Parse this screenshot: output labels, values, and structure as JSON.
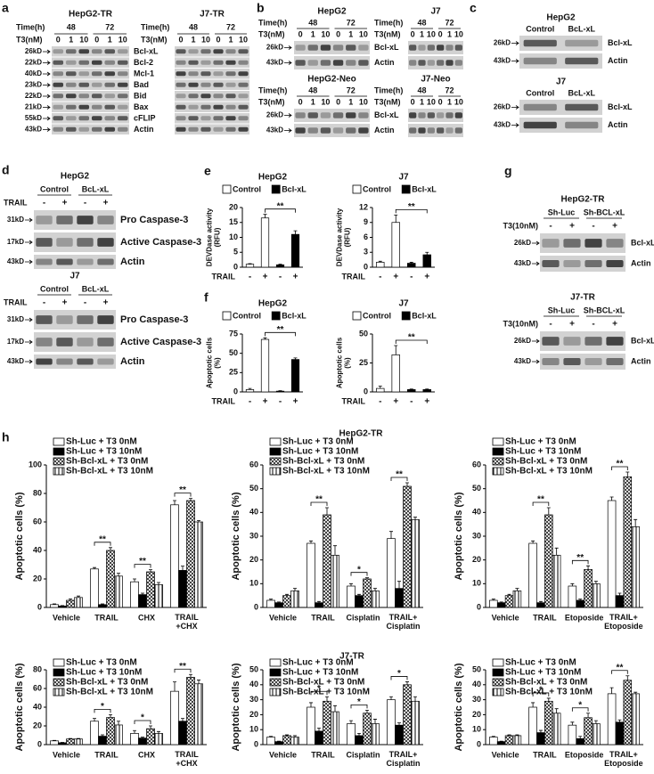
{
  "chart_data": [
    {
      "type": "bar",
      "title": "HepG2",
      "y_label": "DEVDase activity\n(RFU)",
      "x_label": "TRAIL",
      "categories": [
        "-",
        "+",
        "-",
        "+"
      ],
      "series": [
        {
          "name": "Control",
          "color": "#ffffff",
          "values": [
            1,
            16.5,
            null,
            null
          ],
          "errors": [
            0.2,
            1.2,
            null,
            null
          ]
        },
        {
          "name": "Bcl-xL",
          "color": "#000000",
          "values": [
            null,
            null,
            0.8,
            11
          ],
          "errors": [
            null,
            null,
            0.2,
            1.2
          ]
        }
      ],
      "ylim": [
        0,
        20
      ],
      "yticks": [
        0,
        5,
        10,
        15,
        20
      ],
      "significance": "**"
    },
    {
      "type": "bar",
      "title": "J7",
      "y_label": "DEVDase activity\n(RFU)",
      "x_label": "TRAIL",
      "categories": [
        "-",
        "+",
        "-",
        "+"
      ],
      "series": [
        {
          "name": "Control",
          "color": "#ffffff",
          "values": [
            1,
            9,
            null,
            null
          ],
          "errors": [
            0.2,
            1.5,
            null,
            null
          ]
        },
        {
          "name": "Bcl-xL",
          "color": "#000000",
          "values": [
            null,
            null,
            0.8,
            2.5
          ],
          "errors": [
            null,
            null,
            0.2,
            0.5
          ]
        }
      ],
      "ylim": [
        0,
        12
      ],
      "yticks": [
        0,
        3,
        6,
        9,
        12
      ],
      "significance": "**"
    },
    {
      "type": "bar",
      "title": "HepG2",
      "y_label": "Apoptotic cells\n(%)",
      "x_label": "TRAIL",
      "categories": [
        "-",
        "+",
        "-",
        "+"
      ],
      "series": [
        {
          "name": "Control",
          "color": "#ffffff",
          "values": [
            3,
            68,
            null,
            null
          ],
          "errors": [
            1.5,
            2,
            null,
            null
          ]
        },
        {
          "name": "Bcl-xL",
          "color": "#000000",
          "values": [
            null,
            null,
            1,
            42
          ],
          "errors": [
            null,
            null,
            0.5,
            2
          ]
        }
      ],
      "ylim": [
        0,
        75
      ],
      "yticks": [
        0,
        25,
        50,
        75
      ],
      "significance": "**"
    },
    {
      "type": "bar",
      "title": "J7",
      "y_label": "Apoptotic cells\n(%)",
      "x_label": "TRAIL",
      "categories": [
        "-",
        "+",
        "-",
        "+"
      ],
      "series": [
        {
          "name": "Control",
          "color": "#ffffff",
          "values": [
            3,
            32,
            null,
            null
          ],
          "errors": [
            2,
            8,
            null,
            null
          ]
        },
        {
          "name": "Bcl-xL",
          "color": "#000000",
          "values": [
            null,
            null,
            2,
            2
          ],
          "errors": [
            null,
            null,
            0.5,
            0.5
          ]
        }
      ],
      "ylim": [
        0,
        50
      ],
      "yticks": [
        0,
        25,
        50
      ],
      "significance": "**"
    },
    {
      "type": "bar",
      "y_label": "Apoptotic cells (%)",
      "categories": [
        "Vehicle",
        "TRAIL",
        "CHX",
        "TRAIL\n+CHX"
      ],
      "series": [
        {
          "name": "Sh-Luc + T3 0nM",
          "color": "#ffffff",
          "values": [
            2,
            27,
            18,
            72
          ],
          "errors": [
            0.5,
            1,
            2,
            3
          ]
        },
        {
          "name": "Sh-Luc + T3 10nM",
          "color": "#000000",
          "values": [
            1,
            2,
            9,
            26
          ],
          "errors": [
            0.3,
            0.5,
            1,
            3
          ]
        },
        {
          "name": "Sh-Bcl-xL + T3 0nM",
          "color": "#000000",
          "pattern": "checker",
          "values": [
            5,
            40,
            25,
            75
          ],
          "errors": [
            1,
            2,
            1.5,
            1.5
          ]
        },
        {
          "name": "Sh-Bcl-xL + T3 10nM",
          "color": "#000000",
          "pattern": "stripes",
          "values": [
            7,
            22,
            16,
            60
          ],
          "errors": [
            1,
            2,
            1.5,
            1
          ]
        }
      ],
      "ylim": [
        0,
        100
      ],
      "yticks": [
        0,
        20,
        40,
        60,
        80,
        100
      ],
      "significance": [
        null,
        "**",
        "**",
        "**"
      ]
    },
    {
      "type": "bar",
      "y_label": "Apoptotic cells (%)",
      "categories": [
        "Vehicle",
        "TRAIL",
        "Cisplatin",
        "TRAIL+\nCisplatin"
      ],
      "series": [
        {
          "name": "Sh-Luc + T3 0nM",
          "color": "#ffffff",
          "values": [
            3,
            27,
            9,
            29
          ],
          "errors": [
            0.5,
            1,
            1,
            3
          ]
        },
        {
          "name": "Sh-Luc + T3 10nM",
          "color": "#000000",
          "values": [
            2,
            2,
            5,
            8
          ],
          "errors": [
            0.3,
            0.5,
            0.5,
            3
          ]
        },
        {
          "name": "Sh-Bcl-xL + T3 0nM",
          "color": "#000000",
          "pattern": "checker",
          "values": [
            5,
            39,
            12,
            51
          ],
          "errors": [
            0.5,
            3,
            0.5,
            1.5
          ]
        },
        {
          "name": "Sh-Bcl-xL + T3 10nM",
          "color": "#000000",
          "pattern": "stripes",
          "values": [
            7,
            22,
            7,
            37
          ],
          "errors": [
            1,
            4,
            1,
            1
          ]
        }
      ],
      "ylim": [
        0,
        60
      ],
      "yticks": [
        0,
        10,
        20,
        30,
        40,
        50,
        60
      ],
      "significance": [
        null,
        "**",
        "*",
        "**"
      ]
    },
    {
      "type": "bar",
      "y_label": "Apoptotic cells (%)",
      "categories": [
        "Vehicle",
        "TRAIL",
        "Etoposide",
        "TRAIL+\nEtoposide"
      ],
      "series": [
        {
          "name": "Sh-Luc + T3 0nM",
          "color": "#ffffff",
          "values": [
            3,
            27,
            9,
            45
          ],
          "errors": [
            0.5,
            1,
            1,
            1.5
          ]
        },
        {
          "name": "Sh-Luc + T3 10nM",
          "color": "#000000",
          "values": [
            2,
            2,
            3,
            5
          ],
          "errors": [
            0.3,
            0.5,
            0.5,
            1
          ]
        },
        {
          "name": "Sh-Bcl-xL + T3 0nM",
          "color": "#000000",
          "pattern": "checker",
          "values": [
            5,
            39,
            16,
            55
          ],
          "errors": [
            0.5,
            3,
            1.5,
            2
          ]
        },
        {
          "name": "Sh-Bcl-xL + T3 10nM",
          "color": "#000000",
          "pattern": "stripes",
          "values": [
            7,
            22,
            10,
            34
          ],
          "errors": [
            1,
            3,
            1,
            3
          ]
        }
      ],
      "ylim": [
        0,
        60
      ],
      "yticks": [
        0,
        10,
        20,
        30,
        40,
        50,
        60
      ],
      "significance": [
        null,
        "**",
        "**",
        "**"
      ]
    },
    {
      "type": "bar",
      "y_label": "Apoptotic cells (%)",
      "categories": [
        "Vehicle",
        "TRAIL",
        "CHX",
        "TRAIL\n+CHX"
      ],
      "series": [
        {
          "name": "Sh-Luc + T3 0nM",
          "color": "#ffffff",
          "values": [
            4,
            25,
            12,
            57
          ],
          "errors": [
            0.5,
            3,
            3,
            10
          ]
        },
        {
          "name": "Sh-Luc + T3 10nM",
          "color": "#000000",
          "values": [
            2,
            9,
            7,
            25
          ],
          "errors": [
            0.3,
            1.5,
            1,
            3
          ]
        },
        {
          "name": "Sh-Bcl-xL + T3 0nM",
          "color": "#000000",
          "pattern": "checker",
          "values": [
            6,
            29,
            17,
            72
          ],
          "errors": [
            0.5,
            3,
            3,
            3
          ]
        },
        {
          "name": "Sh-Bcl-xL + T3 10nM",
          "color": "#000000",
          "pattern": "stripes",
          "values": [
            6,
            21,
            12,
            65
          ],
          "errors": [
            0.5,
            4,
            2,
            4
          ]
        }
      ],
      "ylim": [
        0,
        80
      ],
      "yticks": [
        0,
        20,
        40,
        60,
        80
      ],
      "significance": [
        null,
        "*",
        "*",
        "**"
      ]
    },
    {
      "type": "bar",
      "y_label": "Apoptotic cells (%)",
      "categories": [
        "Vehicle",
        "TRAIL",
        "Cisplatin",
        "TRAIL+\nCisplatin"
      ],
      "series": [
        {
          "name": "Sh-Luc + T3 0nM",
          "color": "#ffffff",
          "values": [
            5,
            25,
            14,
            30
          ],
          "errors": [
            0.5,
            3,
            2,
            2
          ]
        },
        {
          "name": "Sh-Luc + T3 10nM",
          "color": "#000000",
          "values": [
            2,
            9,
            6,
            13
          ],
          "errors": [
            0.3,
            2,
            1.5,
            1.5
          ]
        },
        {
          "name": "Sh-Bcl-xL + T3 0nM",
          "color": "#000000",
          "pattern": "checker",
          "values": [
            6,
            29,
            21,
            40
          ],
          "errors": [
            0.5,
            3,
            2,
            2
          ]
        },
        {
          "name": "Sh-Bcl-xL + T3 10nM",
          "color": "#000000",
          "pattern": "stripes",
          "values": [
            5,
            22,
            14,
            29
          ],
          "errors": [
            1,
            4,
            3,
            3
          ]
        }
      ],
      "ylim": [
        0,
        50
      ],
      "yticks": [
        0,
        10,
        20,
        30,
        40,
        50
      ],
      "significance": [
        null,
        "*",
        "*",
        "*"
      ]
    },
    {
      "type": "bar",
      "y_label": "Apoptotic cells (%)",
      "categories": [
        "Vehicle",
        "TRAIL",
        "Etoposide",
        "TRAIL+\nEtoposide"
      ],
      "series": [
        {
          "name": "Sh-Luc + T3 0nM",
          "color": "#ffffff",
          "values": [
            5,
            25,
            13,
            34
          ],
          "errors": [
            0.5,
            3,
            2,
            4
          ]
        },
        {
          "name": "Sh-Luc + T3 10nM",
          "color": "#000000",
          "values": [
            2,
            8,
            4,
            15
          ],
          "errors": [
            0.3,
            1.5,
            1.5,
            1.5
          ]
        },
        {
          "name": "Sh-Bcl-xL + T3 0nM",
          "color": "#000000",
          "pattern": "checker",
          "values": [
            6,
            29,
            18,
            43
          ],
          "errors": [
            0.5,
            2,
            3,
            3
          ]
        },
        {
          "name": "Sh-Bcl-xL + T3 10nM",
          "color": "#000000",
          "pattern": "stripes",
          "values": [
            6,
            21,
            14,
            34
          ],
          "errors": [
            0.5,
            3,
            2,
            1
          ]
        }
      ],
      "ylim": [
        0,
        50
      ],
      "yticks": [
        0,
        10,
        20,
        30,
        40,
        50
      ],
      "significance": [
        null,
        "*",
        "*",
        "**"
      ]
    }
  ],
  "figure": {
    "panel_labels": [
      "a",
      "b",
      "c",
      "d",
      "e",
      "f",
      "g",
      "h"
    ],
    "h_rows": [
      "HepG2-TR",
      "J7-TR"
    ]
  },
  "blots": {
    "panel_a": {
      "titles": [
        "HepG2-TR",
        "J7-TR"
      ],
      "time_label": "Time(h)",
      "times": [
        "48",
        "72"
      ],
      "dose_label": "T3(nM)",
      "doses": [
        "0",
        "1",
        "10"
      ],
      "markers": [
        "26kD",
        "22kD",
        "40kD",
        "23kD",
        "22kD",
        "21kD",
        "55kD",
        "43kD"
      ],
      "proteins": [
        "Bcl-xL",
        "Bcl-2",
        "Mcl-1",
        "Bad",
        "Bid",
        "Bax",
        "cFLIP",
        "Actin"
      ]
    },
    "panel_b": {
      "blots": [
        {
          "title": "HepG2",
          "markers": [
            "26kD",
            "43kD"
          ]
        },
        {
          "title": "J7"
        },
        {
          "title": "HepG2-Neo",
          "markers": [
            "26kD",
            "43kD"
          ]
        },
        {
          "title": "J7-Neo"
        }
      ],
      "time_label": "Time(h)",
      "times": [
        "48",
        "72"
      ],
      "dose_label": "T3(nM)",
      "doses": [
        "0",
        "1",
        "10"
      ],
      "proteins": [
        "Bcl-xL",
        "Actin"
      ]
    },
    "panel_c": {
      "blots": [
        {
          "title": "HepG2",
          "columns": [
            "Control",
            "BcL-xL"
          ]
        },
        {
          "title": "J7",
          "columns": [
            "Control",
            "BcL-xL"
          ]
        }
      ],
      "markers": [
        "26kD",
        "43kD"
      ],
      "proteins": [
        "Bcl-xL",
        "Actin"
      ]
    },
    "panel_d": {
      "blots": [
        {
          "title": "HepG2"
        },
        {
          "title": "J7"
        }
      ],
      "columns": [
        "Control",
        "BcL-xL"
      ],
      "treatment": "TRAIL",
      "signs": [
        "-",
        "+"
      ],
      "markers": [
        "31kD",
        "17kD",
        "43kD"
      ],
      "proteins": [
        "Pro Caspase-3",
        "Active Caspase-3",
        "Actin"
      ]
    },
    "panel_g": {
      "blots": [
        {
          "title": "HepG2-TR"
        },
        {
          "title": "J7-TR"
        }
      ],
      "columns": [
        "Sh-Luc",
        "Sh-BCL-xL"
      ],
      "treatment": "T3(10nM)",
      "signs": [
        "-",
        "+"
      ],
      "markers": [
        "26kD",
        "43kD"
      ],
      "proteins": [
        "Bcl-xL",
        "Actin"
      ]
    }
  }
}
